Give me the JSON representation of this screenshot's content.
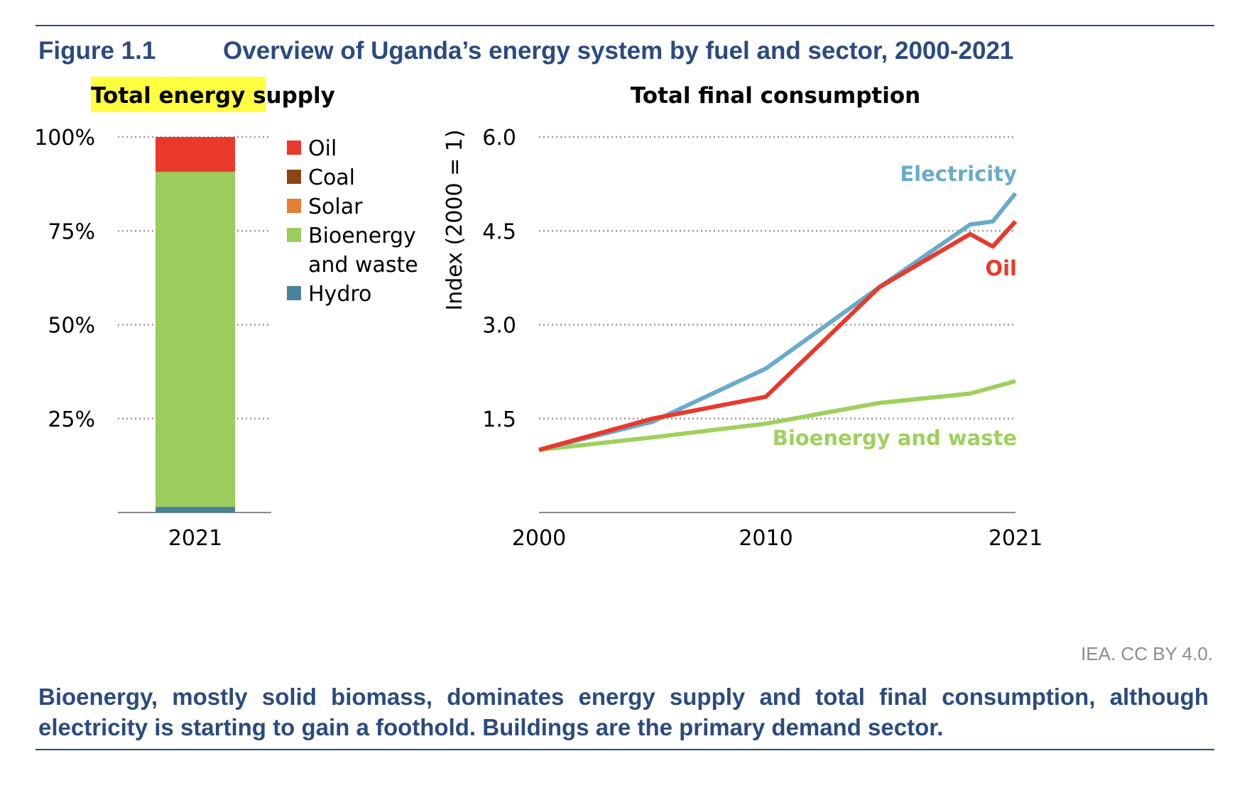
{
  "figure": {
    "number": "Figure 1.1",
    "title": "Overview of Uganda’s energy system by fuel and sector, 2000-2021"
  },
  "credit": "IEA. CC BY 4.0.",
  "caption": "Bioenergy, mostly solid biomass, dominates energy supply and total final consumption, although electricity is starting to gain a foothold. Buildings are the primary demand sector.",
  "colors": {
    "oil": "#e8392a",
    "coal": "#8b4513",
    "solar": "#e57e36",
    "bioenergy": "#9acd5b",
    "hydro": "#4a8299",
    "electricity_line": "#6aaacb",
    "bioenergy_line": "#9fd05e",
    "highlight": "#ffff3f",
    "navy": "#2b4b7e"
  },
  "chart_data": [
    {
      "type": "bar",
      "stacked": true,
      "title": "Total energy supply",
      "categories": [
        "2021"
      ],
      "ylim": [
        0,
        100
      ],
      "yticks": [
        "100%",
        "75%",
        "50%",
        "25%"
      ],
      "ytick_values": [
        100,
        75,
        50,
        25
      ],
      "grid": true,
      "legend_position": "right",
      "series": [
        {
          "name": "Hydro",
          "values": [
            1.5
          ],
          "color_key": "hydro"
        },
        {
          "name": "Bioenergy\nand waste",
          "values": [
            89.2
          ],
          "color_key": "bioenergy"
        },
        {
          "name": "Solar",
          "values": [
            0.1
          ],
          "color_key": "solar"
        },
        {
          "name": "Coal",
          "values": [
            0.2
          ],
          "color_key": "coal"
        },
        {
          "name": "Oil",
          "values": [
            9.0
          ],
          "color_key": "oil"
        }
      ],
      "legend_order": [
        "Oil",
        "Coal",
        "Solar",
        "Bioenergy\nand waste",
        "Hydro"
      ]
    },
    {
      "type": "line",
      "title": "Total final consumption",
      "ylabel": "Index (2000 = 1)",
      "xlim": [
        2000,
        2021
      ],
      "ylim": [
        0,
        6
      ],
      "xticks": [
        "2000",
        "2010",
        "2021"
      ],
      "xtick_values": [
        2000,
        2010,
        2021
      ],
      "yticks": [
        "6.0",
        "4.5",
        "3.0",
        "1.5"
      ],
      "ytick_values": [
        6.0,
        4.5,
        3.0,
        1.5
      ],
      "grid": true,
      "series": [
        {
          "name": "Electricity",
          "color_key": "electricity_line",
          "x": [
            2000,
            2005,
            2010,
            2015,
            2019,
            2020,
            2021
          ],
          "y": [
            1.0,
            1.45,
            2.3,
            3.6,
            4.6,
            4.65,
            5.1
          ]
        },
        {
          "name": "Oil",
          "color_key": "oil",
          "x": [
            2000,
            2005,
            2010,
            2015,
            2019,
            2020,
            2021
          ],
          "y": [
            1.0,
            1.5,
            1.85,
            3.6,
            4.45,
            4.25,
            4.65
          ]
        },
        {
          "name": "Bioenergy and waste",
          "color_key": "bioenergy_line",
          "x": [
            2000,
            2005,
            2010,
            2015,
            2019,
            2021
          ],
          "y": [
            1.0,
            1.2,
            1.42,
            1.75,
            1.9,
            2.1
          ]
        }
      ]
    }
  ]
}
